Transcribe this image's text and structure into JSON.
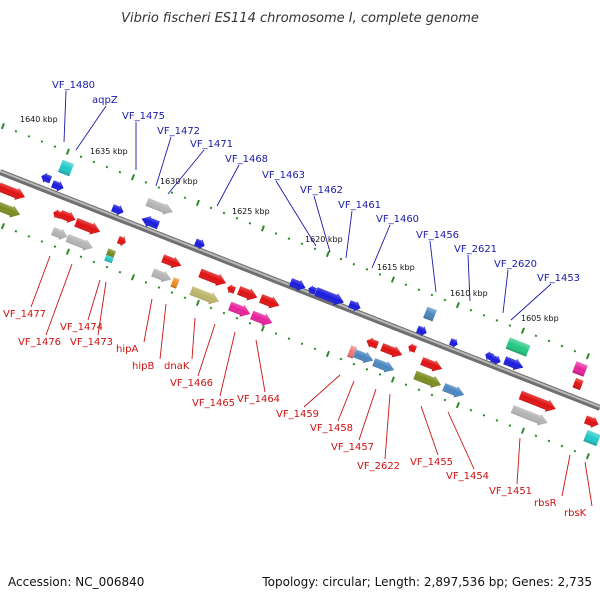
{
  "title": "Vibrio fischeri ES114 chromosome I, complete genome",
  "footer": {
    "accession": "Accession: NC_006840",
    "summary": "Topology: circular; Length: 2,897,536 bp; Genes: 2,735"
  },
  "colors": {
    "upper_labels": "#1a1aa8",
    "lower_labels": "#cc1111",
    "backbone": "#8a8a8a",
    "tick": "#2a8a2a",
    "red": "#e01010",
    "blue": "#1a1adc",
    "gray": "#b4b4b4",
    "olive": "#7a8c1e",
    "khaki": "#bcb46a",
    "magenta": "#e8209a",
    "cyan": "#20c8c8",
    "steel": "#4a86c0",
    "green": "#20c880",
    "orange": "#f08a20",
    "salmon": "#f07878"
  },
  "kbp_labels": [
    "1640 kbp",
    "1635 kbp",
    "1630 kbp",
    "1625 kbp",
    "1620 kbp",
    "1615 kbp",
    "1610 kbp",
    "1605 kbp"
  ],
  "upper_labels": [
    "VF_1480",
    "aqpZ",
    "VF_1475",
    "VF_1472",
    "VF_1471",
    "VF_1468",
    "VF_1463",
    "VF_1462",
    "VF_1461",
    "VF_1460",
    "VF_1456",
    "VF_2621",
    "VF_2620",
    "VF_1453"
  ],
  "lower_labels": [
    "VF_1477",
    "VF_1476",
    "VF_1474",
    "VF_1473",
    "hipA",
    "hipB",
    "dnaK",
    "VF_1466",
    "VF_1465",
    "VF_1464",
    "VF_1459",
    "VF_1458",
    "VF_1457",
    "VF_2622",
    "VF_1455",
    "VF_1454",
    "VF_1451",
    "rbsR",
    "rbsK"
  ]
}
